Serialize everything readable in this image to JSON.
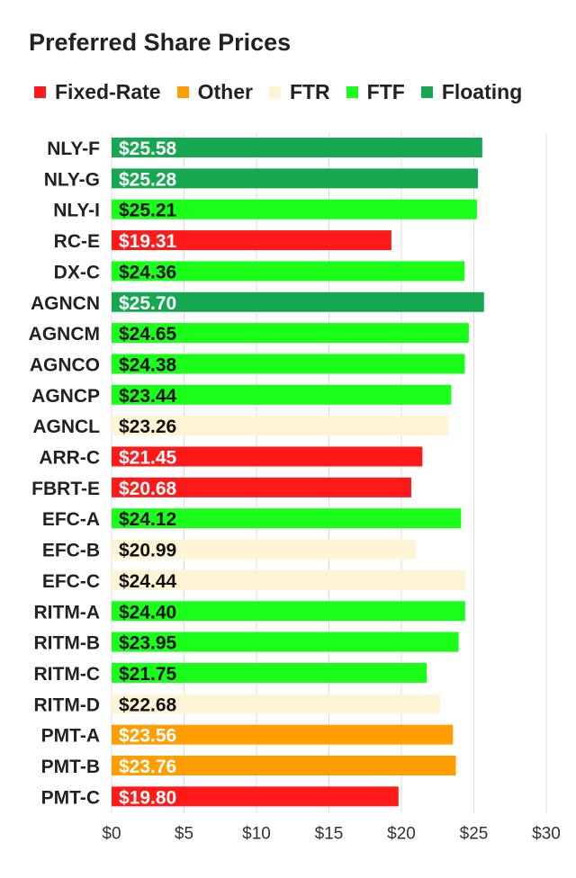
{
  "title": "Preferred Share Prices",
  "legend": [
    {
      "name": "Fixed-Rate",
      "color": "#ff1a1a"
    },
    {
      "name": "Other",
      "color": "#ff9e00"
    },
    {
      "name": "FTR",
      "color": "#fff5d6"
    },
    {
      "name": "FTF",
      "color": "#1aff1a"
    },
    {
      "name": "Floating",
      "color": "#15a850"
    }
  ],
  "chart_data": {
    "type": "bar",
    "orientation": "horizontal",
    "title": "Preferred Share Prices",
    "xlabel": "",
    "ylabel": "",
    "xlim": [
      0,
      30
    ],
    "x_ticks": [
      0,
      5,
      10,
      15,
      20,
      25,
      30
    ],
    "x_tick_labels": [
      "$0",
      "$5",
      "$10",
      "$15",
      "$20",
      "$25",
      "$30"
    ],
    "grid": "vertical",
    "legend_position": "top",
    "categories": [
      "NLY-F",
      "NLY-G",
      "NLY-I",
      "RC-E",
      "DX-C",
      "AGNCN",
      "AGNCM",
      "AGNCO",
      "AGNCP",
      "AGNCL",
      "ARR-C",
      "FBRT-E",
      "EFC-A",
      "EFC-B",
      "EFC-C",
      "RITM-A",
      "RITM-B",
      "RITM-C",
      "RITM-D",
      "PMT-A",
      "PMT-B",
      "PMT-C"
    ],
    "values": [
      25.58,
      25.28,
      25.21,
      19.31,
      24.36,
      25.7,
      24.65,
      24.38,
      23.44,
      23.26,
      21.45,
      20.68,
      24.12,
      20.99,
      24.44,
      24.4,
      23.95,
      21.75,
      22.68,
      23.56,
      23.76,
      19.8
    ],
    "value_labels": [
      "$25.58",
      "$25.28",
      "$25.21",
      "$19.31",
      "$24.36",
      "$25.70",
      "$24.65",
      "$24.38",
      "$23.44",
      "$23.26",
      "$21.45",
      "$20.68",
      "$24.12",
      "$20.99",
      "$24.44",
      "$24.40",
      "$23.95",
      "$21.75",
      "$22.68",
      "$23.56",
      "$23.76",
      "$19.80"
    ],
    "groups": [
      "Floating",
      "Floating",
      "FTF",
      "Fixed-Rate",
      "FTF",
      "Floating",
      "FTF",
      "FTF",
      "FTF",
      "FTR",
      "Fixed-Rate",
      "Fixed-Rate",
      "FTF",
      "FTR",
      "FTR",
      "FTF",
      "FTF",
      "FTF",
      "FTR",
      "Other",
      "Other",
      "Fixed-Rate"
    ]
  }
}
